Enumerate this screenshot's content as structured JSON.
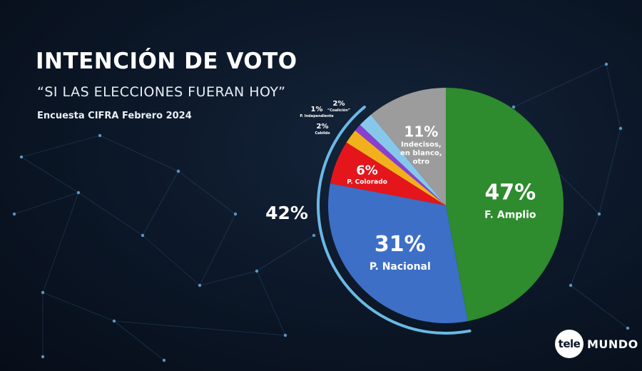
{
  "header": {
    "title": "INTENCIÓN DE VOTO",
    "subtitle": "“SI LAS ELECCIONES FUERAN HOY”",
    "source": "Encuesta CIFRA Febrero 2024"
  },
  "chart_data": {
    "type": "pie",
    "start": "top, clockwise",
    "slices": [
      {
        "pct_label": "47%",
        "name": "F. Amplio",
        "value": 47,
        "color": "#2e8b2e"
      },
      {
        "pct_label": "31%",
        "name": "P. Nacional",
        "value": 31,
        "color": "#3d6fc7"
      },
      {
        "pct_label": "6%",
        "name": "P. Colorado",
        "value": 6,
        "color": "#e4161b"
      },
      {
        "pct_label": "",
        "name": "",
        "value": 2,
        "color": "#f2b01e"
      },
      {
        "pct_label": "",
        "name": "",
        "value": 1,
        "color": "#8a3fd1"
      },
      {
        "pct_label": "",
        "name": "",
        "value": 2,
        "color": "#87c8ea"
      },
      {
        "pct_label": "11%",
        "name": "Indecisos, en blanco, otro",
        "value": 11,
        "color": "#9c9c9c"
      }
    ],
    "small_labels": [
      {
        "pct_label": "2%",
        "name": "Cabildo",
        "slice": 3
      },
      {
        "pct_label": "1%",
        "name": "P. Independiente",
        "slice": 4
      },
      {
        "pct_label": "2%",
        "name": "“Coalición”",
        "slice": 5
      }
    ],
    "bracket": {
      "label": "42%",
      "from_slice": 1,
      "to_slice": 5,
      "color": "#6ab9e6"
    }
  },
  "logo": {
    "left": "tele",
    "right": "MUNDO"
  }
}
